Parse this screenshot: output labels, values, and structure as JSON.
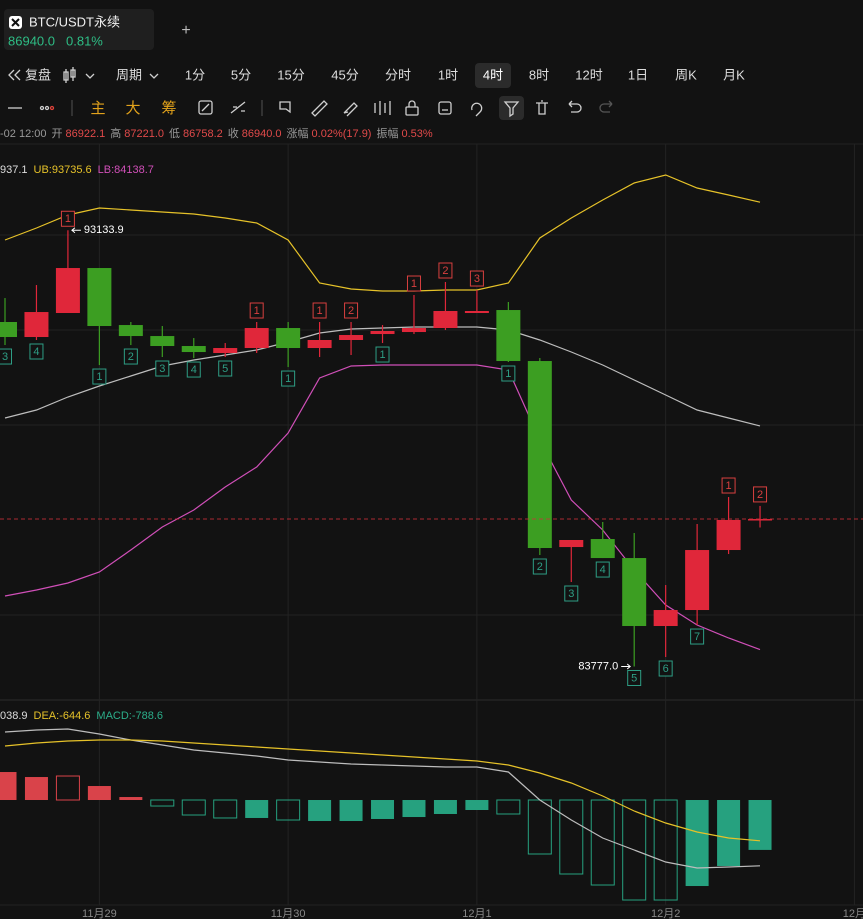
{
  "tab": {
    "symbol": "BTC/USDT永续",
    "price": "86940.0",
    "change": "0.81%",
    "add": "+"
  },
  "toolbar": {
    "replay": "复盘",
    "period": "周期",
    "intervals": [
      "1分",
      "5分",
      "15分",
      "45分",
      "分时",
      "1时",
      "4时",
      "8时",
      "12时",
      "1日",
      "周K",
      "月K"
    ],
    "active": 6
  },
  "tools": [
    "主",
    "大",
    "筹"
  ],
  "ohlc_info": {
    "date": "-02 12:00",
    "items": [
      {
        "label": "开",
        "value": "86922.1"
      },
      {
        "label": "高",
        "value": "87221.0"
      },
      {
        "label": "低",
        "value": "86758.2"
      },
      {
        "label": "收",
        "value": "86940.0"
      },
      {
        "label": "涨幅",
        "value": "0.02%(17.9)"
      },
      {
        "label": "振幅",
        "value": "0.53%"
      }
    ]
  },
  "chart_data": [
    {
      "type": "candlestick",
      "legend": [
        {
          "text": "937.1",
          "color": "#dddddd"
        },
        {
          "text": "UB:93735.6",
          "color": "#e6c229"
        },
        {
          "text": "LB:84138.7",
          "color": "#d04fb8"
        }
      ],
      "up_color": "#e0273a",
      "down_color": "#3c9e22",
      "open": [
        91166,
        90844,
        91359,
        92324,
        91101,
        90865,
        90651,
        90501,
        90608,
        91037,
        90608,
        90780,
        90908,
        90951,
        91037,
        91359,
        91423,
        90329,
        86339,
        86511,
        86103,
        84645,
        84988,
        86275,
        86922.1,
        null,
        null,
        null
      ],
      "high": [
        91680,
        91959,
        93133.9,
        92324,
        91166,
        91080,
        90822,
        90715,
        91166,
        91166,
        91166,
        91166,
        91101,
        91745,
        92024,
        91852,
        91595,
        90393,
        86490,
        86876,
        86640,
        85524,
        86833,
        87412,
        87221.0,
        null,
        null,
        null
      ],
      "low": [
        90672,
        90780,
        91359,
        90243,
        90672,
        90415,
        90393,
        90415,
        90501,
        90200,
        90415,
        90458,
        90715,
        90908,
        90994,
        91359,
        90308,
        86168,
        85589,
        86103,
        83777.0,
        83980,
        84666,
        86189,
        86758.2,
        null,
        null,
        null
      ],
      "close": [
        90844,
        91380,
        92324,
        91080,
        90865,
        90651,
        90522,
        90608,
        91037,
        90608,
        90780,
        90887,
        90973,
        91037,
        91402,
        91402,
        90329,
        86318,
        86490,
        86103,
        84645,
        84988,
        86275,
        86920,
        86940.0,
        null,
        null,
        null
      ],
      "series": [
        {
          "color": "#e6c229",
          "values": [
            92925,
            93182,
            93461,
            93611,
            93568,
            93525,
            93482,
            93396,
            93289,
            92925,
            92002,
            91874,
            91831,
            91831,
            91852,
            91852,
            92002,
            92967,
            93396,
            93783,
            94147,
            94319,
            94040,
            93890,
            93735.6,
            null,
            null,
            null
          ]
        },
        {
          "color": "#bdbdbd",
          "values": [
            89106,
            89278,
            89557,
            89793,
            90007,
            90222,
            90351,
            90458,
            90565,
            90737,
            90930,
            91016,
            91037,
            91058,
            91058,
            91058,
            90994,
            90780,
            90522,
            90243,
            89922,
            89600,
            89278,
            89106,
            88937.1,
            null,
            null,
            null
          ]
        },
        {
          "color": "#d04fb8",
          "values": [
            85288,
            85417,
            85567,
            85803,
            86275,
            86768,
            87133,
            87626,
            88055,
            88785,
            89964,
            90222,
            90243,
            90243,
            90243,
            90243,
            90136,
            88635,
            87348,
            86704,
            85846,
            85095,
            84666,
            84387,
            84138.7,
            null,
            null,
            null
          ]
        }
      ],
      "ylim": [
        83058,
        95070
      ],
      "price_line": true,
      "td_marks": [
        {
          "index": 2,
          "label": "1",
          "side": "high"
        },
        {
          "index": 8,
          "label": "1",
          "side": "high"
        },
        {
          "index": 10,
          "label": "1",
          "side": "high"
        },
        {
          "index": 11,
          "label": "2",
          "side": "high"
        },
        {
          "index": 13,
          "label": "1",
          "side": "high"
        },
        {
          "index": 14,
          "label": "2",
          "side": "high"
        },
        {
          "index": 15,
          "label": "3",
          "side": "high"
        },
        {
          "index": 23,
          "label": "1",
          "side": "high"
        },
        {
          "index": 24,
          "label": "2",
          "side": "high"
        },
        {
          "index": 0,
          "label": "3",
          "side": "low"
        },
        {
          "index": 1,
          "label": "4",
          "side": "low"
        },
        {
          "index": 3,
          "label": "1",
          "side": "low"
        },
        {
          "index": 4,
          "label": "2",
          "side": "low"
        },
        {
          "index": 5,
          "label": "3",
          "side": "low"
        },
        {
          "index": 6,
          "label": "4",
          "side": "low"
        },
        {
          "index": 7,
          "label": "5",
          "side": "low"
        },
        {
          "index": 9,
          "label": "1",
          "side": "low"
        },
        {
          "index": 12,
          "label": "1",
          "side": "low"
        },
        {
          "index": 16,
          "label": "1",
          "side": "low"
        },
        {
          "index": 17,
          "label": "2",
          "side": "low"
        },
        {
          "index": 18,
          "label": "3",
          "side": "low"
        },
        {
          "index": 19,
          "label": "4",
          "side": "low"
        },
        {
          "index": 20,
          "label": "5",
          "side": "low"
        },
        {
          "index": 21,
          "label": "6",
          "side": "low"
        },
        {
          "index": 22,
          "label": "7",
          "side": "low"
        }
      ],
      "annotations": [
        {
          "index": 2,
          "text": "93133.9",
          "at": "high"
        },
        {
          "index": 20,
          "text": "83777.0",
          "at": "low"
        }
      ]
    },
    {
      "type": "macd",
      "legend": [
        {
          "text": "038.9",
          "color": "#dddddd"
        },
        {
          "text": "DEA:-644.6",
          "color": "#e6c229"
        },
        {
          "text": "MACD:-788.6",
          "color": "#2bae8a"
        }
      ],
      "categories": [
        null,
        null,
        null,
        "11月29",
        null,
        null,
        null,
        null,
        null,
        "11月30",
        null,
        null,
        null,
        null,
        null,
        "12月1",
        null,
        null,
        null,
        null,
        null,
        "12月2",
        null,
        null,
        null,
        null,
        null,
        "12月"
      ],
      "values": [
        442,
        363,
        379,
        221,
        47,
        -95,
        -237,
        -284,
        -284,
        -316,
        -332,
        -332,
        -300,
        -269,
        -221,
        -158,
        -221,
        -853,
        -1169,
        -1343,
        -1580,
        -1580,
        -1359,
        -1043,
        -788.6,
        null,
        null,
        null
      ],
      "hollow": [
        false,
        false,
        true,
        false,
        false,
        true,
        true,
        true,
        false,
        true,
        false,
        false,
        false,
        false,
        false,
        false,
        true,
        true,
        true,
        true,
        true,
        true,
        false,
        false,
        false,
        null,
        null,
        null
      ],
      "pos_color": "#d9434a",
      "neg_color": "#26a17f",
      "series": [
        {
          "color": "#bdbdbd",
          "values": [
            1074,
            1106,
            1122,
            1043,
            948,
            869,
            790,
            743,
            695,
            632,
            600,
            569,
            553,
            537,
            521,
            521,
            442,
            0,
            -316,
            -600,
            -790,
            -980,
            -1074,
            -1059,
            -1038.9,
            null,
            null,
            null
          ]
        },
        {
          "color": "#e6c229",
          "values": [
            853,
            901,
            932,
            948,
            948,
            932,
            901,
            869,
            837,
            806,
            774,
            743,
            711,
            679,
            648,
            616,
            553,
            427,
            269,
            63,
            -174,
            -363,
            -506,
            -600,
            -644.6,
            null,
            null,
            null
          ]
        }
      ],
      "ylim": [
        -1880,
        1580
      ]
    }
  ]
}
